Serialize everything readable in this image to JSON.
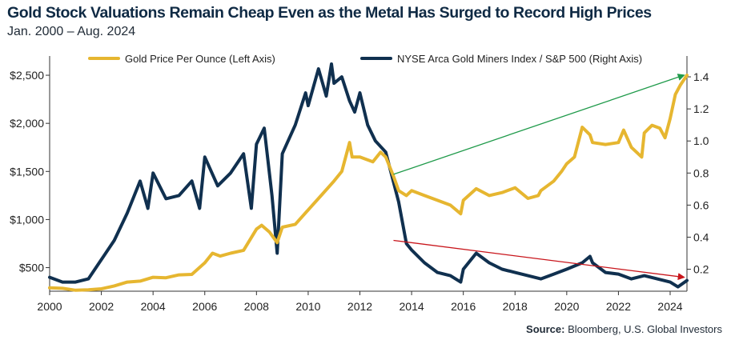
{
  "header": {
    "title": "Gold Stock Valuations Remain Cheap Even as the Metal Has Surged to Record High Prices",
    "subtitle": "Jan. 2000 – Aug. 2024"
  },
  "footer": {
    "source_label": "Source:",
    "source_text": "Bloomberg, U.S. Global Investors"
  },
  "colors": {
    "gold": "#e6b630",
    "miners": "#10304f",
    "up_arrow": "#1f9a4a",
    "down_arrow": "#c8151b"
  },
  "chart_data": {
    "type": "line",
    "title": "Gold Stock Valuations Remain Cheap Even as the Metal Has Surged to Record High Prices",
    "subtitle": "Jan. 2000 – Aug. 2024",
    "x_ticks": [
      "2000",
      "2002",
      "2004",
      "2006",
      "2008",
      "2010",
      "2012",
      "2014",
      "2016",
      "2018",
      "2020",
      "2022",
      "2024"
    ],
    "xlim": [
      2000,
      2024.65
    ],
    "left_axis": {
      "ticks": [
        "$500",
        "$1,000",
        "$1,500",
        "$2,000",
        "$2,500"
      ],
      "tick_values": [
        500,
        1000,
        1500,
        2000,
        2500
      ],
      "ylim": [
        255,
        2700
      ]
    },
    "right_axis": {
      "ticks": [
        "0.2",
        "0.4",
        "0.6",
        "0.8",
        "1.0",
        "1.2",
        "1.4"
      ],
      "tick_values": [
        0.2,
        0.4,
        0.6,
        0.8,
        1.0,
        1.2,
        1.4
      ],
      "ylim": [
        0.063,
        1.53
      ]
    },
    "legend_position": "top-center",
    "grid": false,
    "series": [
      {
        "name": "Gold Price Per Ounce (Left Axis)",
        "axis": "left",
        "color": "#e6b630",
        "x": [
          2000,
          2000.5,
          2001,
          2001.5,
          2002,
          2002.5,
          2003,
          2003.5,
          2004,
          2004.5,
          2005,
          2005.5,
          2006,
          2006.3,
          2006.6,
          2007,
          2007.5,
          2008,
          2008.2,
          2008.5,
          2008.8,
          2009,
          2009.5,
          2010,
          2010.5,
          2011,
          2011.3,
          2011.6,
          2011.7,
          2012,
          2012.5,
          2012.8,
          2013,
          2013.3,
          2013.5,
          2013.8,
          2014,
          2014.5,
          2015,
          2015.5,
          2015.9,
          2016,
          2016.5,
          2017,
          2017.5,
          2018,
          2018.5,
          2018.9,
          2019,
          2019.5,
          2019.8,
          2020,
          2020.3,
          2020.6,
          2020.9,
          2021,
          2021.5,
          2022,
          2022.2,
          2022.5,
          2022.9,
          2023,
          2023.3,
          2023.6,
          2023.8,
          2024,
          2024.2,
          2024.4,
          2024.65
        ],
        "values": [
          290,
          285,
          265,
          270,
          280,
          310,
          350,
          360,
          400,
          395,
          425,
          430,
          550,
          650,
          620,
          650,
          680,
          900,
          940,
          870,
          760,
          920,
          950,
          1100,
          1250,
          1400,
          1500,
          1800,
          1650,
          1650,
          1600,
          1700,
          1650,
          1450,
          1300,
          1250,
          1300,
          1250,
          1200,
          1150,
          1060,
          1200,
          1320,
          1250,
          1280,
          1330,
          1220,
          1250,
          1300,
          1400,
          1500,
          1580,
          1650,
          1960,
          1880,
          1800,
          1780,
          1800,
          1930,
          1750,
          1650,
          1900,
          1980,
          1950,
          1850,
          2050,
          2300,
          2400,
          2500
        ]
      },
      {
        "name": "NYSE Arca Gold Miners Index / S&P 500 (Right Axis)",
        "axis": "right",
        "color": "#10304f",
        "x": [
          2000,
          2000.5,
          2001,
          2001.5,
          2002,
          2002.5,
          2003,
          2003.5,
          2003.8,
          2004,
          2004.5,
          2005,
          2005.5,
          2005.8,
          2006,
          2006.5,
          2007,
          2007.5,
          2007.8,
          2008,
          2008.3,
          2008.6,
          2008.8,
          2009,
          2009.5,
          2009.9,
          2010,
          2010.4,
          2010.7,
          2010.9,
          2011,
          2011.3,
          2011.6,
          2011.8,
          2012,
          2012.3,
          2012.6,
          2013,
          2013.5,
          2013.8,
          2014,
          2014.5,
          2015,
          2015.5,
          2015.9,
          2016,
          2016.5,
          2017,
          2017.5,
          2018,
          2018.5,
          2019,
          2019.5,
          2020,
          2020.3,
          2020.6,
          2020.9,
          2021,
          2021.5,
          2022,
          2022.5,
          2023,
          2023.5,
          2024,
          2024.3,
          2024.65
        ],
        "values": [
          0.15,
          0.12,
          0.12,
          0.14,
          0.26,
          0.38,
          0.55,
          0.75,
          0.58,
          0.8,
          0.64,
          0.66,
          0.75,
          0.58,
          0.9,
          0.72,
          0.8,
          0.92,
          0.58,
          0.98,
          1.08,
          0.66,
          0.3,
          0.92,
          1.1,
          1.3,
          1.22,
          1.45,
          1.28,
          1.48,
          1.36,
          1.4,
          1.25,
          1.18,
          1.3,
          1.1,
          1.0,
          0.93,
          0.62,
          0.36,
          0.32,
          0.24,
          0.18,
          0.16,
          0.12,
          0.2,
          0.3,
          0.24,
          0.2,
          0.18,
          0.16,
          0.14,
          0.17,
          0.2,
          0.22,
          0.24,
          0.28,
          0.24,
          0.18,
          0.17,
          0.14,
          0.16,
          0.14,
          0.12,
          0.09,
          0.13
        ]
      }
    ],
    "annotations": [
      {
        "type": "arrow",
        "color": "#1f9a4a",
        "axis": "left",
        "from": [
          2013.3,
          1470
        ],
        "to": [
          2024.65,
          2500
        ],
        "note": "gold price rising"
      },
      {
        "type": "arrow",
        "color": "#c8151b",
        "axis": "right",
        "from": [
          2013.3,
          0.38
        ],
        "to": [
          2024.65,
          0.15
        ],
        "note": "miners ratio falling"
      }
    ]
  }
}
